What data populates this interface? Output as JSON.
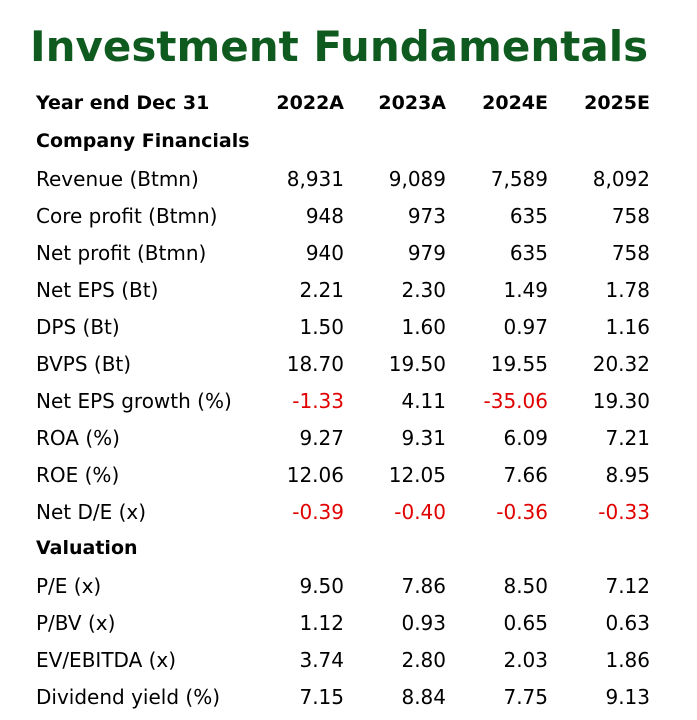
{
  "title": "Investment Fundamentals",
  "header": {
    "label": "Year end Dec 31",
    "years": [
      "2022A",
      "2023A",
      "2024E",
      "2025E"
    ]
  },
  "sections": [
    {
      "name": "Company Financials",
      "rows": [
        {
          "label": "Revenue (Btmn)",
          "values": [
            "8,931",
            "9,089",
            "7,589",
            "8,092"
          ]
        },
        {
          "label": "Core profit (Btmn)",
          "values": [
            "948",
            "973",
            "635",
            "758"
          ]
        },
        {
          "label": "Net profit (Btmn)",
          "values": [
            "940",
            "979",
            "635",
            "758"
          ]
        },
        {
          "label": "Net EPS (Bt)",
          "values": [
            "2.21",
            "2.30",
            "1.49",
            "1.78"
          ]
        },
        {
          "label": "DPS (Bt)",
          "values": [
            "1.50",
            "1.60",
            "0.97",
            "1.16"
          ]
        },
        {
          "label": "BVPS (Bt)",
          "values": [
            "18.70",
            "19.50",
            "19.55",
            "20.32"
          ]
        },
        {
          "label": "Net EPS growth (%)",
          "values": [
            "-1.33",
            "4.11",
            "-35.06",
            "19.30"
          ]
        },
        {
          "label": "ROA (%)",
          "values": [
            "9.27",
            "9.31",
            "6.09",
            "7.21"
          ]
        },
        {
          "label": "ROE (%)",
          "values": [
            "12.06",
            "12.05",
            "7.66",
            "8.95"
          ]
        },
        {
          "label": "Net D/E (x)",
          "values": [
            "-0.39",
            "-0.40",
            "-0.36",
            "-0.33"
          ]
        }
      ]
    },
    {
      "name": "Valuation",
      "rows": [
        {
          "label": "P/E (x)",
          "values": [
            "9.50",
            "7.86",
            "8.50",
            "7.12"
          ]
        },
        {
          "label": "P/BV (x)",
          "values": [
            "1.12",
            "0.93",
            "0.65",
            "0.63"
          ]
        },
        {
          "label": "EV/EBITDA (x)",
          "values": [
            "3.74",
            "2.80",
            "2.03",
            "1.86"
          ]
        },
        {
          "label": "Dividend yield (%)",
          "values": [
            "7.15",
            "8.84",
            "7.75",
            "9.13"
          ]
        }
      ]
    }
  ],
  "colors": {
    "title": "#0f5a1f",
    "negative": "#e00000"
  }
}
